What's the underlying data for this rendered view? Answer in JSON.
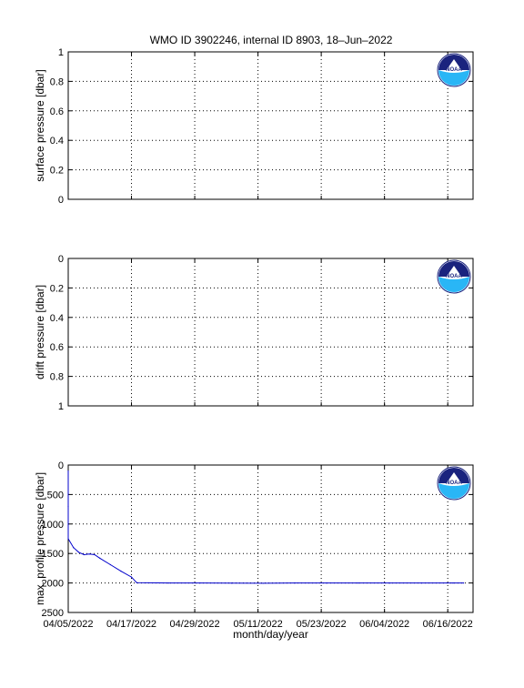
{
  "title": "WMO ID 3902246, internal ID 8903, 18–Jun–2022",
  "colors": {
    "line": "#0000cc",
    "noaa_dark": "#1a237e",
    "noaa_light": "#29b6f6"
  },
  "logo_icon": "noaa-logo-icon",
  "logo_text": "NOAA",
  "chart_data": [
    {
      "type": "line",
      "ylabel": "surface pressure [dbar]",
      "ylim": [
        0,
        1
      ],
      "y_reversed": false,
      "y_ticks": [
        "0",
        "0.2",
        "0.4",
        "0.6",
        "0.8",
        "1"
      ],
      "grid": true,
      "x_ticks": [],
      "series": []
    },
    {
      "type": "line",
      "ylabel": "drift pressure [dbar]",
      "ylim": [
        0,
        1
      ],
      "y_reversed": true,
      "y_ticks": [
        "0",
        "0.2",
        "0.4",
        "0.6",
        "0.8",
        "1"
      ],
      "grid": true,
      "x_ticks": [],
      "series": []
    },
    {
      "type": "line",
      "ylabel": "max. profile pressure [dbar]",
      "xlabel": "month/day/year",
      "ylim": [
        0,
        2500
      ],
      "y_reversed": true,
      "y_ticks": [
        "0",
        "500",
        "1000",
        "1500",
        "2000",
        "2500"
      ],
      "grid": true,
      "x_ticks": [
        "04/05/2022",
        "04/17/2022",
        "04/29/2022",
        "05/11/2022",
        "05/23/2022",
        "06/04/2022",
        "06/16/2022"
      ],
      "series": [
        {
          "x": [
            "04/05/2022",
            "04/05/2022",
            "04/05/2022",
            "04/06/2022",
            "04/07/2022",
            "04/08/2022",
            "04/09/2022",
            "04/10/2022",
            "04/11/2022",
            "04/13/2022",
            "04/15/2022",
            "04/17/2022",
            "04/18/2022",
            "04/24/2022",
            "04/30/2022",
            "05/06/2022",
            "05/12/2022",
            "05/18/2022",
            "05/24/2022",
            "05/30/2022",
            "06/05/2022",
            "06/11/2022",
            "06/17/2022",
            "06/19/2022"
          ],
          "y": [
            100,
            700,
            1250,
            1400,
            1480,
            1520,
            1510,
            1520,
            1580,
            1690,
            1800,
            1900,
            1995,
            2000,
            2000,
            2002,
            2005,
            2000,
            2000,
            2000,
            2000,
            2000,
            2000,
            2000
          ]
        }
      ]
    }
  ]
}
